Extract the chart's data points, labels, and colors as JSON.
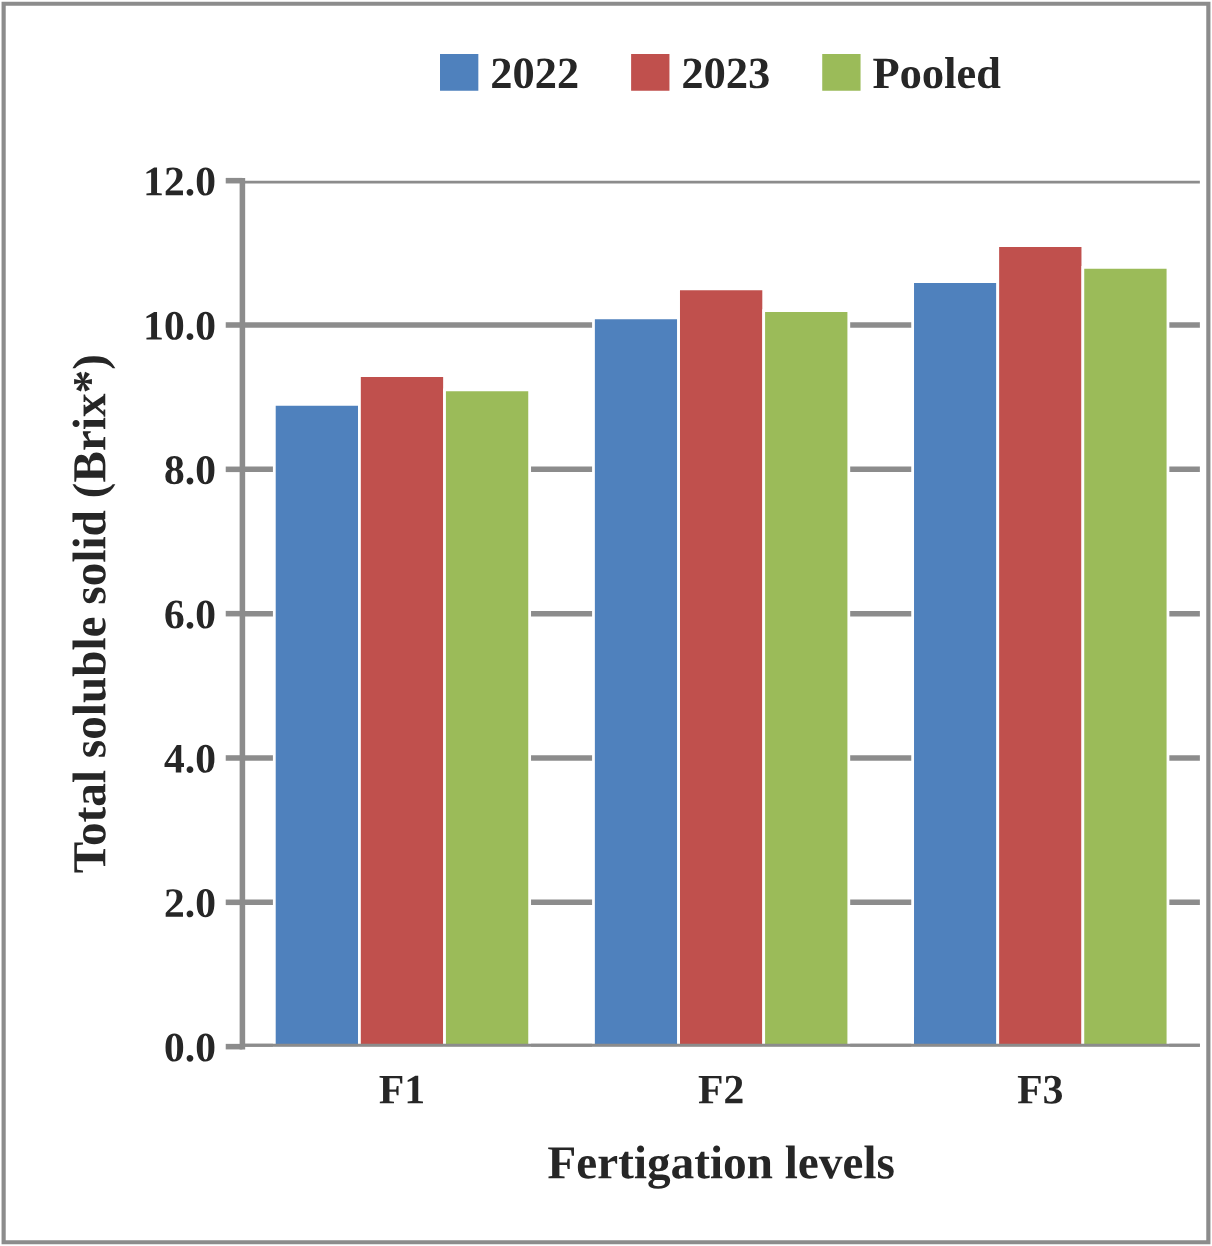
{
  "chart_data": {
    "type": "bar",
    "xlabel": "Fertigation levels",
    "ylabel": "Total soluble solid (Brix*)",
    "categories": [
      "F1",
      "F2",
      "F3"
    ],
    "series": [
      {
        "name": "2022",
        "color": "#4f81bd",
        "values": [
          8.9,
          10.1,
          10.6
        ]
      },
      {
        "name": "2023",
        "color": "#c0504d",
        "values": [
          9.3,
          10.5,
          11.1
        ]
      },
      {
        "name": "Pooled",
        "color": "#9bbb59",
        "values": [
          9.1,
          10.2,
          10.8
        ]
      }
    ],
    "ylim": [
      0,
      12
    ],
    "yticks": [
      {
        "value": 0,
        "label": "0.0"
      },
      {
        "value": 2,
        "label": "2.0"
      },
      {
        "value": 4,
        "label": "4.0"
      },
      {
        "value": 6,
        "label": "6.0"
      },
      {
        "value": 8,
        "label": "8.0"
      },
      {
        "value": 10,
        "label": "10.0"
      },
      {
        "value": 12,
        "label": "12.0"
      }
    ],
    "grid": "y",
    "legend": "top"
  }
}
